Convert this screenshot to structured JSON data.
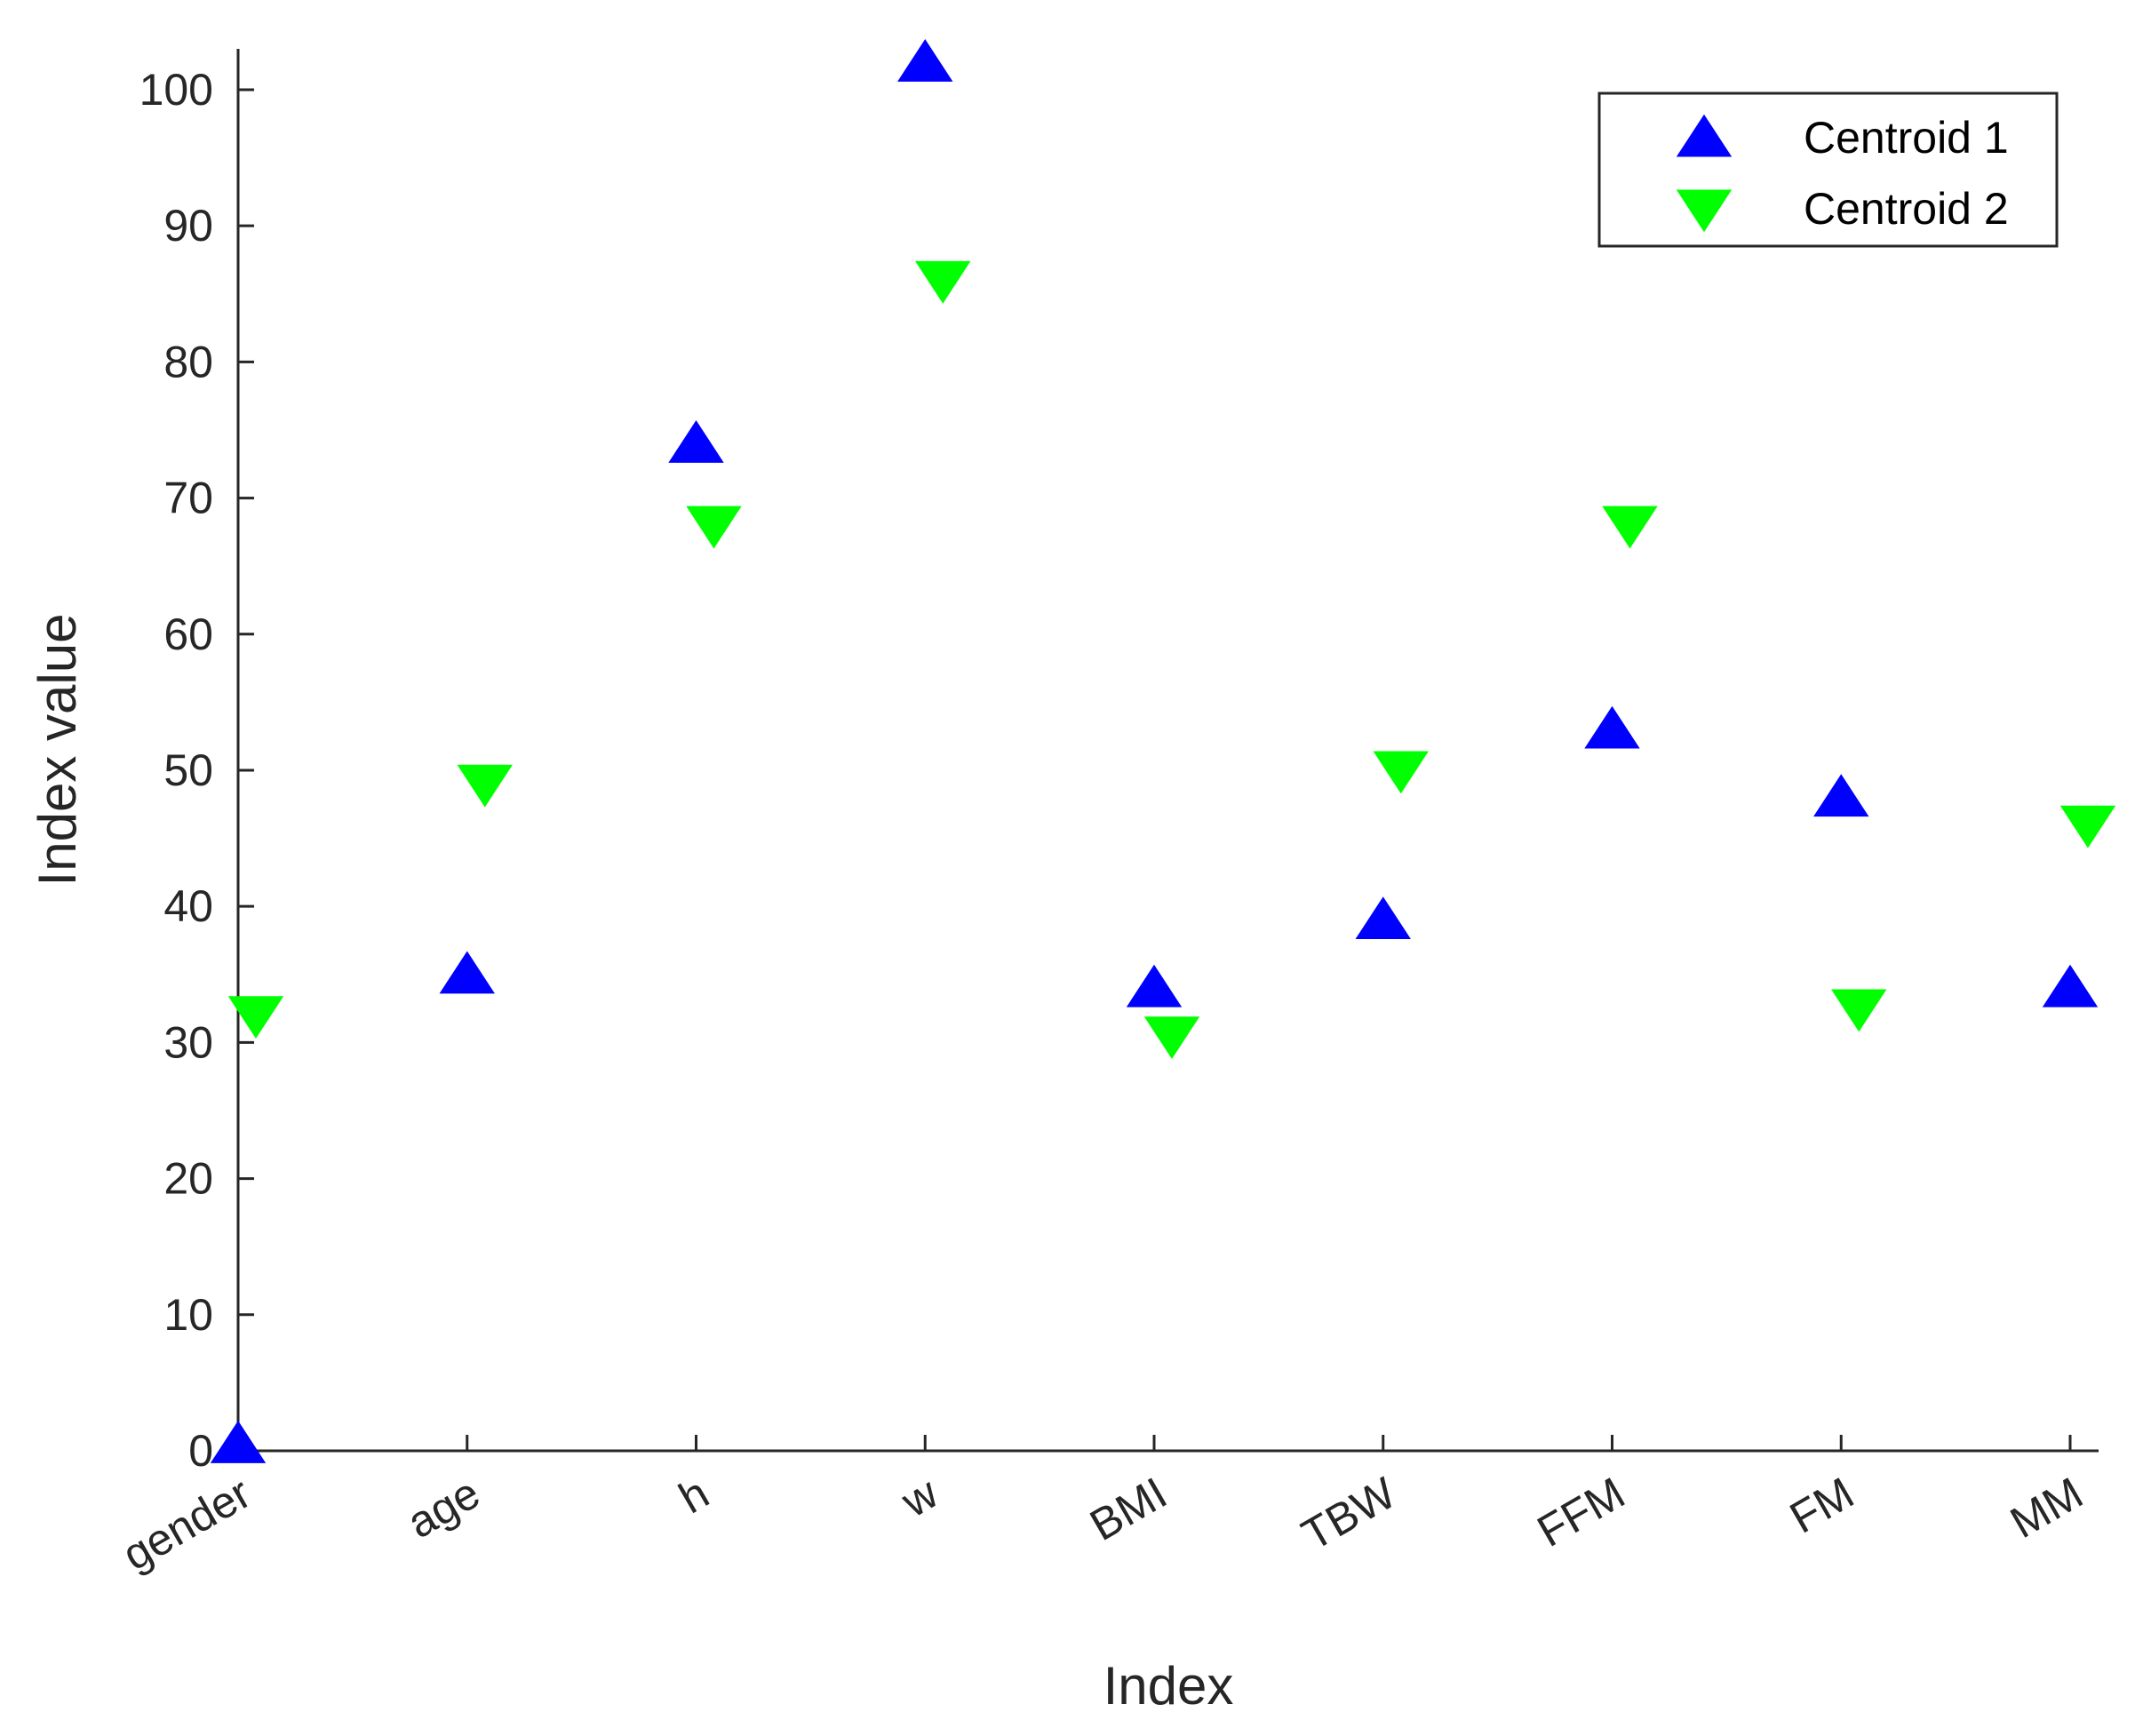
{
  "chart_data": {
    "type": "scatter",
    "title": "",
    "xlabel": "Index",
    "ylabel": "Index value",
    "categories": [
      "gender",
      "age",
      "h",
      "w",
      "BMI",
      "TBW",
      "FFM",
      "FM",
      "MM"
    ],
    "ylim": [
      0,
      103
    ],
    "yticks": [
      0,
      10,
      20,
      30,
      40,
      50,
      60,
      70,
      80,
      90,
      100
    ],
    "grid": false,
    "legend_position": "top-right",
    "series": [
      {
        "name": "Centroid 1",
        "marker": "triangle-up",
        "color": "#0000ff",
        "values": [
          0.5,
          35,
          74,
          102,
          34,
          39,
          53,
          48,
          34
        ]
      },
      {
        "name": "Centroid 2",
        "marker": "triangle-down",
        "color": "#00ff00",
        "values": [
          32,
          49,
          68,
          86,
          30.5,
          50,
          68,
          32.5,
          46
        ]
      }
    ]
  }
}
